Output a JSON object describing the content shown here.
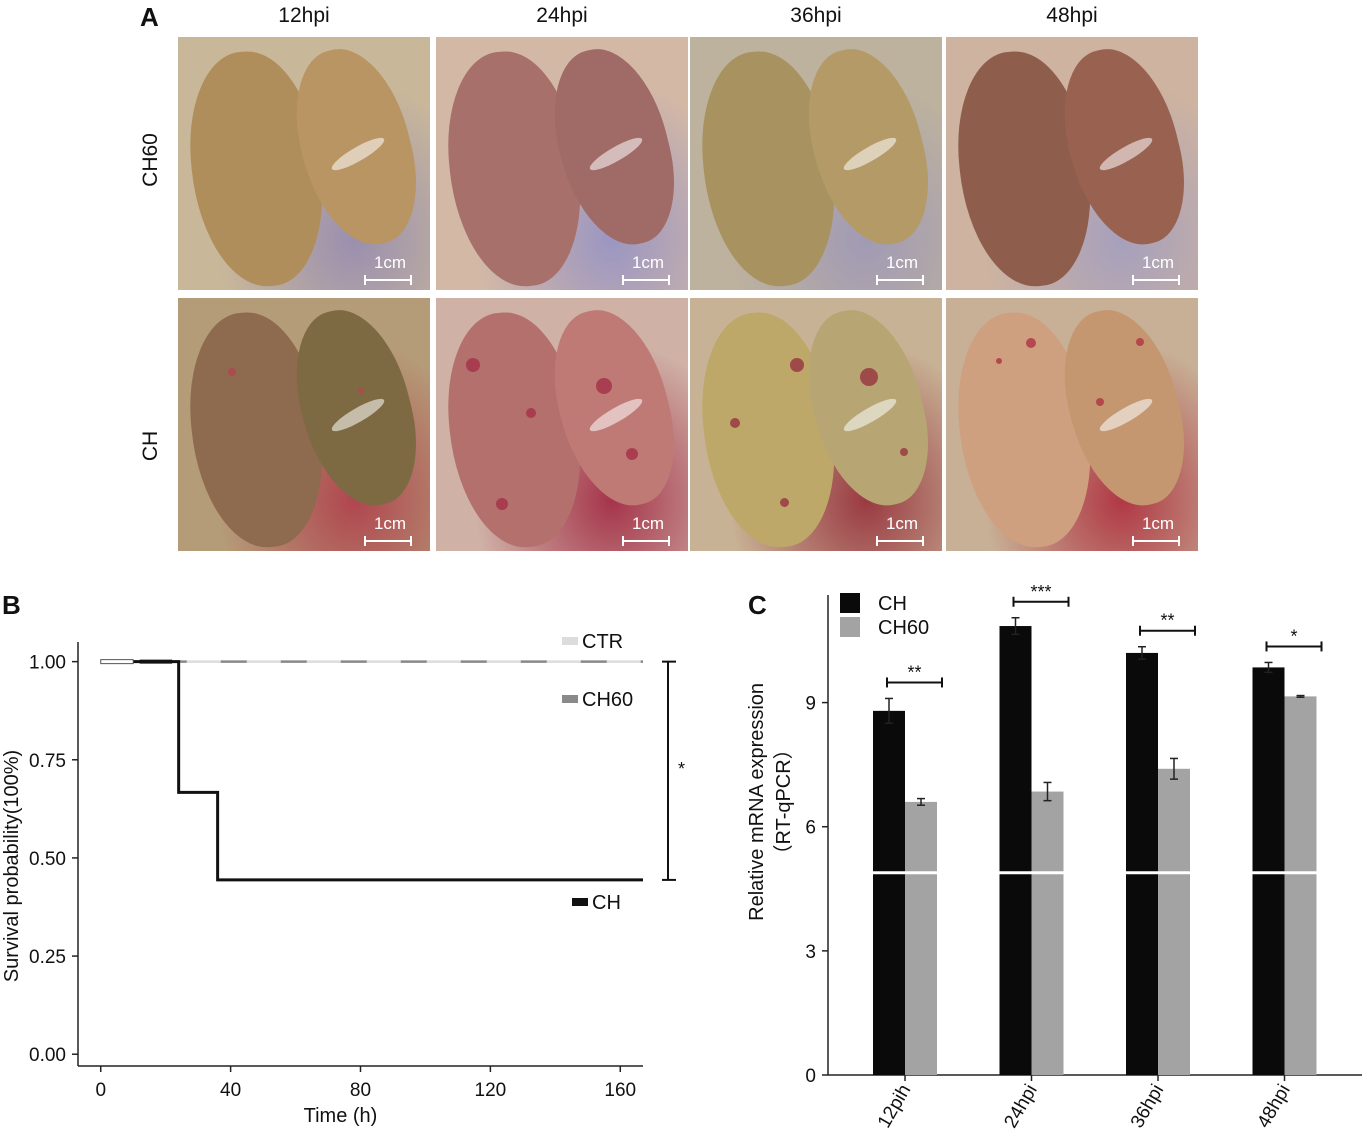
{
  "panelA": {
    "letter": "A",
    "columns": [
      "12hpi",
      "24hpi",
      "36hpi",
      "48hpi"
    ],
    "rows": [
      "CH60",
      "CH"
    ],
    "scale_label": "1cm",
    "photos": [
      {
        "bg": "#c9b79a",
        "lobeA": "#b08e5c",
        "lobeB": "#b89562",
        "tint": "#9a8fb0"
      },
      {
        "bg": "#d3b8a6",
        "lobeA": "#a7706b",
        "lobeB": "#a06a66",
        "tint": "#9b96c2"
      },
      {
        "bg": "#bdb29e",
        "lobeA": "#a8925f",
        "lobeB": "#b39a66",
        "tint": "#a19ab5"
      },
      {
        "bg": "#cdb3a0",
        "lobeA": "#8f5d4c",
        "lobeB": "#99614f",
        "tint": "#a6a0bd"
      },
      {
        "bg": "#b59c78",
        "lobeA": "#8e6a4e",
        "lobeB": "#7e6a42",
        "tint": "#b0464f"
      },
      {
        "bg": "#cfb1a6",
        "lobeA": "#b4706d",
        "lobeB": "#c07a76",
        "tint": "#a5344a"
      },
      {
        "bg": "#c8b295",
        "lobeA": "#bda86a",
        "lobeB": "#b7a673",
        "tint": "#9a3a42"
      },
      {
        "bg": "#c7b095",
        "lobeA": "#cfa080",
        "lobeB": "#c49770",
        "tint": "#b03845"
      }
    ]
  },
  "panelB": {
    "letter": "B",
    "chart_data": {
      "type": "line",
      "xlabel": "Time (h)",
      "ylabel": "Survival probability(100%)",
      "xlim": [
        -7,
        167
      ],
      "ylim": [
        -0.03,
        1.05
      ],
      "xticks": [
        0,
        40,
        80,
        120,
        160
      ],
      "yticks": [
        0.0,
        0.25,
        0.5,
        0.75,
        1.0
      ],
      "ytick_labels": [
        "0.00",
        "0.25",
        "0.50",
        "0.75",
        "1.00"
      ],
      "series": [
        {
          "name": "CTR",
          "style": "solid",
          "color": "#dcdcdc",
          "points": [
            [
              0,
              1.0
            ],
            [
              167,
              1.0
            ]
          ]
        },
        {
          "name": "CH60",
          "style": "dashed",
          "color": "#8a8a8a",
          "points": [
            [
              0,
              1.0
            ],
            [
              167,
              1.0
            ]
          ]
        },
        {
          "name": "CH",
          "style": "step",
          "color": "#111111",
          "points": [
            [
              0,
              1.0
            ],
            [
              24,
              1.0
            ],
            [
              24,
              0.667
            ],
            [
              36,
              0.667
            ],
            [
              36,
              0.444
            ],
            [
              167,
              0.444
            ]
          ]
        }
      ],
      "annotation": "*",
      "bracket": [
        1.0,
        0.444
      ]
    }
  },
  "panelC": {
    "letter": "C",
    "chart_data": {
      "type": "bar",
      "categories": [
        "12pih",
        "24hpi",
        "36hpi",
        "48hpi"
      ],
      "ylabel_line1": "Relative mRNA expression",
      "ylabel_line2": "（RT-qPCR）",
      "ylim": [
        0,
        11.6
      ],
      "yticks": [
        0,
        3,
        6,
        9
      ],
      "series": [
        {
          "name": "CH",
          "color": "#0a0a0a",
          "values": [
            8.8,
            10.85,
            10.2,
            9.85
          ],
          "errors": [
            0.3,
            0.2,
            0.15,
            0.12
          ]
        },
        {
          "name": "CH60",
          "color": "#a3a3a3",
          "values": [
            6.6,
            6.85,
            7.4,
            9.15
          ],
          "errors": [
            0.08,
            0.22,
            0.25,
            0.02
          ]
        }
      ],
      "significance": [
        "**",
        "***",
        "**",
        "*"
      ],
      "axis_break": 4.9
    }
  }
}
